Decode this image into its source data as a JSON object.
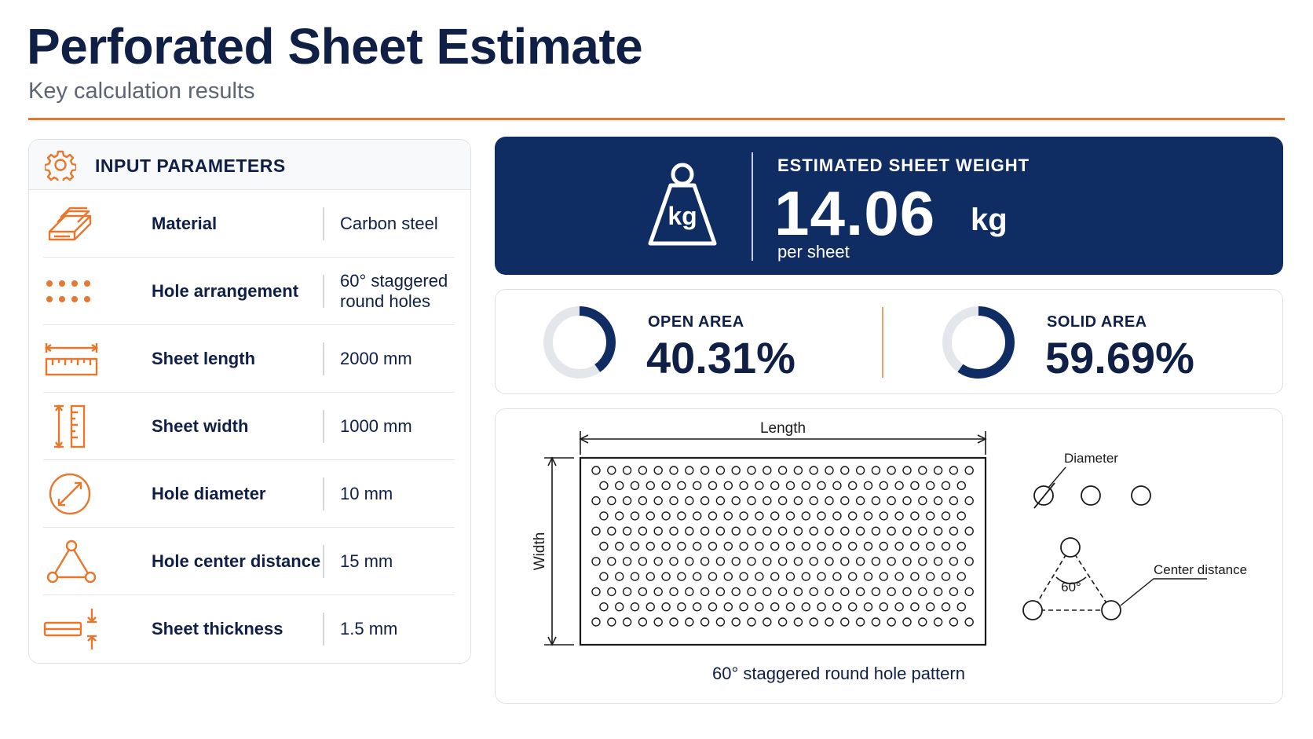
{
  "header": {
    "title": "Perforated Sheet Estimate",
    "subtitle": "Key calculation results"
  },
  "inputs": {
    "heading": "INPUT PARAMETERS",
    "rows": [
      {
        "label": "Material",
        "value": "Carbon steel",
        "icon": "steel-bars-icon"
      },
      {
        "label": "Hole arrangement",
        "value": "60° staggered round holes",
        "icon": "dot-grid-icon"
      },
      {
        "label": "Sheet length",
        "value": "2000 mm",
        "icon": "ruler-length-icon"
      },
      {
        "label": "Sheet width",
        "value": "1000 mm",
        "icon": "ruler-width-icon"
      },
      {
        "label": "Hole diameter",
        "value": "10 mm",
        "icon": "diameter-icon"
      },
      {
        "label": "Hole center distance",
        "value": "15 mm",
        "icon": "triangle-nodes-icon"
      },
      {
        "label": "Sheet thickness",
        "value": "1.5 mm",
        "icon": "thickness-icon"
      }
    ]
  },
  "weight": {
    "label": "ESTIMATED SHEET WEIGHT",
    "value": "14.06",
    "unit": "kg",
    "per": "per sheet",
    "icon_text": "kg"
  },
  "areas": {
    "open": {
      "label": "OPEN AREA",
      "value": "40.31%",
      "fraction": 0.4031
    },
    "solid": {
      "label": "SOLID AREA",
      "value": "59.69%",
      "fraction": 0.5969
    }
  },
  "diagram": {
    "length_label": "Length",
    "width_label": "Width",
    "diameter_label": "Diameter",
    "center_label": "Center distance",
    "angle_label": "60°",
    "caption": "60° staggered round hole pattern"
  },
  "colors": {
    "navy": "#0f2d63",
    "orange": "#e8772e",
    "ring_track": "#e3e6eb"
  }
}
